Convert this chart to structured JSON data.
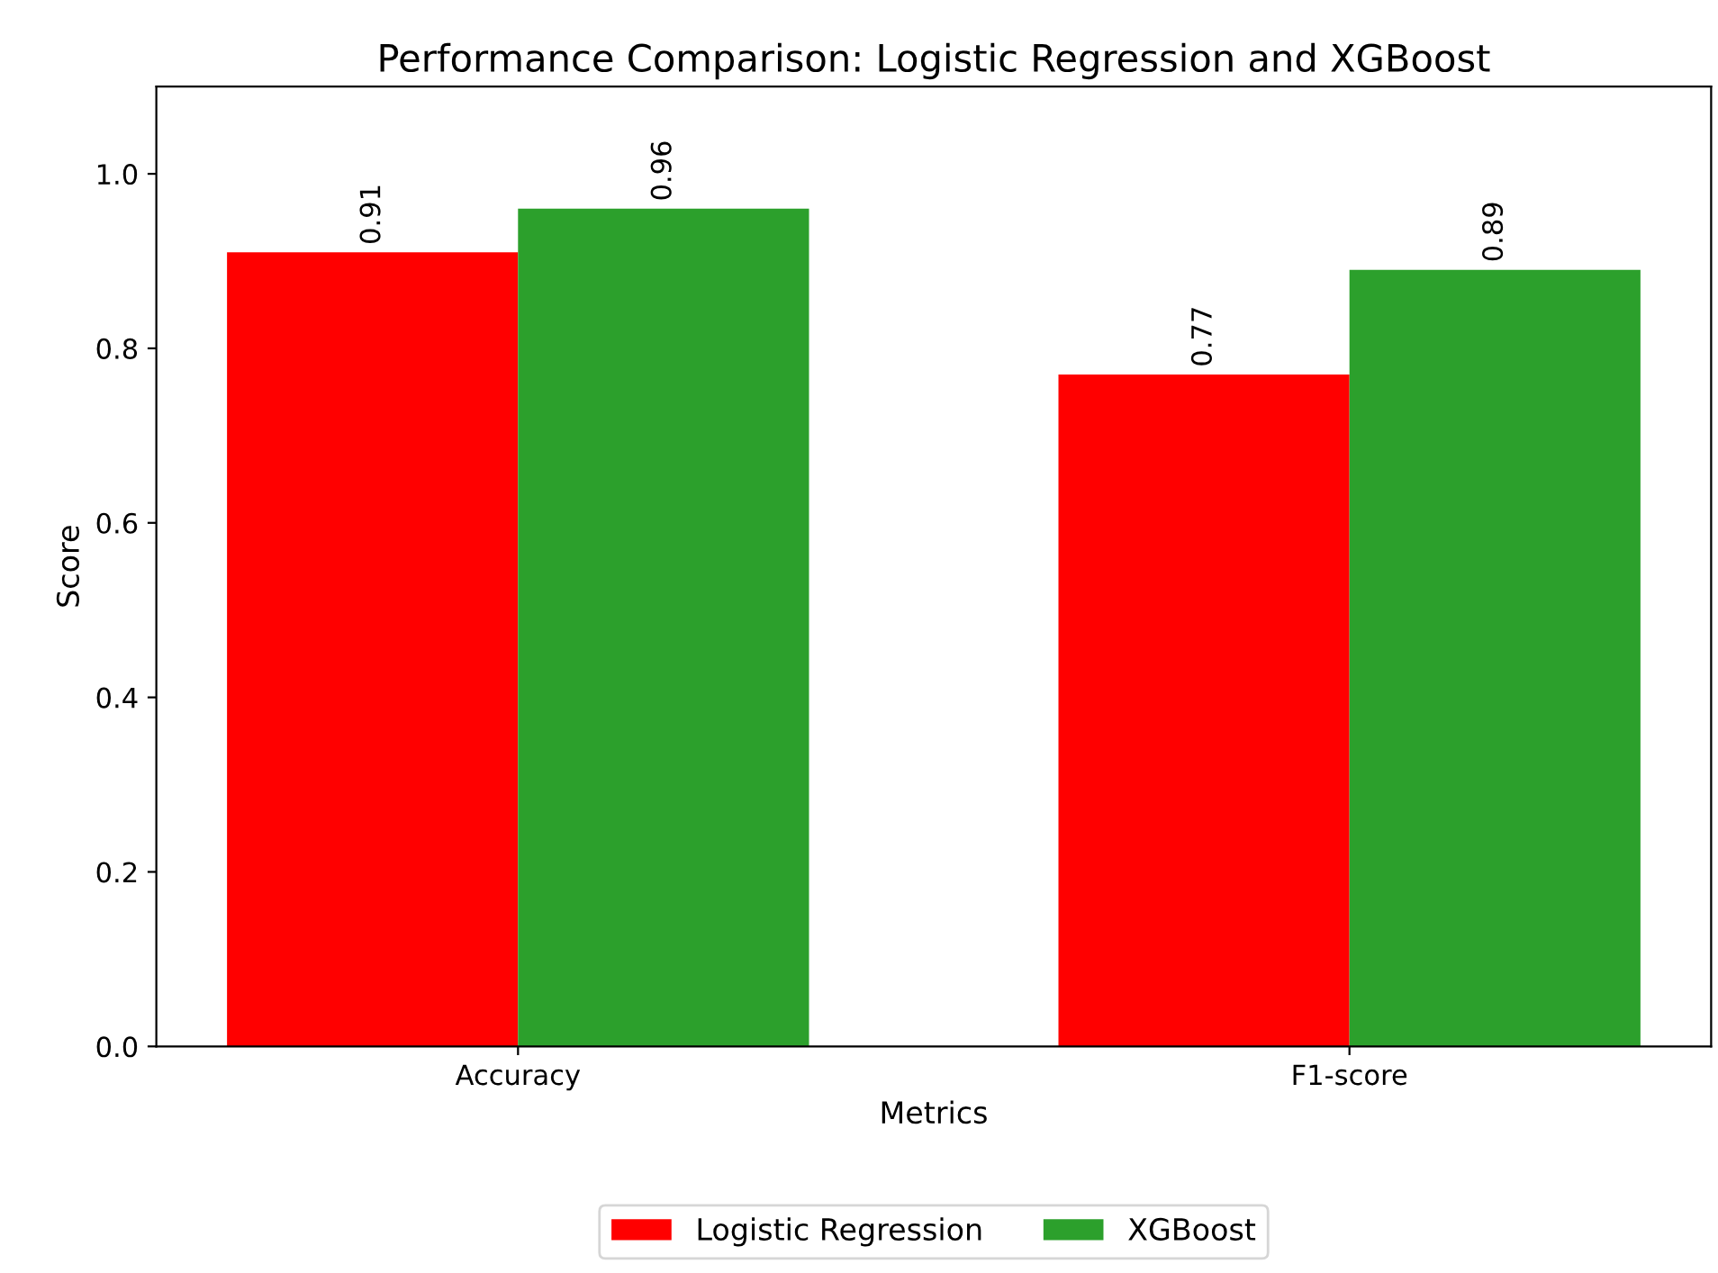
{
  "chart_data": {
    "type": "bar",
    "title": "Performance Comparison: Logistic Regression and XGBoost",
    "xlabel": "Metrics",
    "ylabel": "Score",
    "categories": [
      "Accuracy",
      "F1-score"
    ],
    "series": [
      {
        "name": "Logistic Regression",
        "color": "#ff0000",
        "values": [
          0.91,
          0.77
        ]
      },
      {
        "name": "XGBoost",
        "color": "#2ca02c",
        "values": [
          0.96,
          0.89
        ]
      }
    ],
    "ylim": [
      0,
      1.1
    ],
    "yticks": [
      {
        "value": 0,
        "label": "0.0"
      },
      {
        "value": 0.2,
        "label": "0.2"
      },
      {
        "value": 0.4,
        "label": "0.4"
      },
      {
        "value": 0.6,
        "label": "0.6"
      },
      {
        "value": 0.8,
        "label": "0.8"
      },
      {
        "value": 1.0,
        "label": "1.0"
      }
    ],
    "data_labels": true,
    "legend": "bottom",
    "grid": false
  }
}
